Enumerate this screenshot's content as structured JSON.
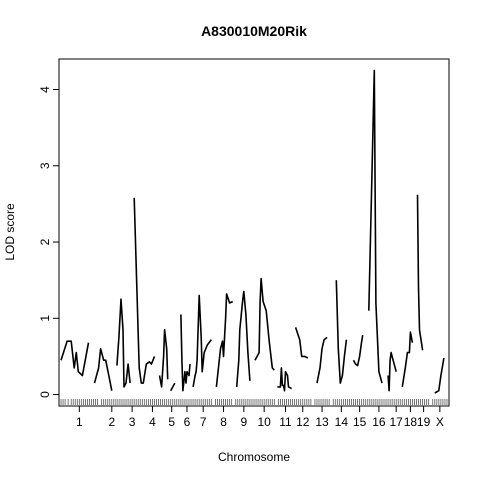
{
  "chart_data": {
    "type": "line",
    "title": "A830010M20Rik",
    "xlabel": "Chromosome",
    "ylabel": "LOD score",
    "ylim": [
      -0.15,
      4.4
    ],
    "yticks": [
      0,
      1,
      2,
      3,
      4
    ],
    "grid": false,
    "legend": "none",
    "line_color": "#000000",
    "chromosomes": [
      {
        "label": "1",
        "span": [
          0.1,
          1.9
        ],
        "segments": [
          [
            [
              0.1,
              0.45
            ],
            [
              0.4,
              0.7
            ],
            [
              0.6,
              0.7
            ],
            [
              0.75,
              0.35
            ],
            [
              0.85,
              0.55
            ],
            [
              0.95,
              0.3
            ],
            [
              1.15,
              0.25
            ],
            [
              1.45,
              0.68
            ]
          ]
        ]
      },
      {
        "label": "2",
        "span": [
          2.1,
          3.1
        ],
        "segments": [
          [
            [
              1.75,
              0.15
            ],
            [
              1.95,
              0.35
            ],
            [
              2.05,
              0.6
            ],
            [
              2.2,
              0.45
            ],
            [
              2.3,
              0.45
            ],
            [
              2.45,
              0.25
            ],
            [
              2.6,
              0.05
            ]
          ]
        ]
      },
      {
        "label": "3",
        "span": [
          3.2,
          4.0
        ],
        "segments": [
          [
            [
              2.85,
              0.38
            ],
            [
              2.95,
              0.75
            ],
            [
              3.05,
              1.25
            ],
            [
              3.15,
              0.85
            ],
            [
              3.2,
              0.1
            ],
            [
              3.3,
              0.15
            ],
            [
              3.4,
              0.4
            ],
            [
              3.5,
              0.15
            ]
          ]
        ]
      },
      {
        "label": "4",
        "span": [
          4.1,
          5.1
        ],
        "segments": [
          [
            [
              3.7,
              2.58
            ],
            [
              3.95,
              0.35
            ],
            [
              4.05,
              0.15
            ],
            [
              4.15,
              0.15
            ],
            [
              4.3,
              0.4
            ],
            [
              4.45,
              0.43
            ],
            [
              4.55,
              0.4
            ],
            [
              4.7,
              0.5
            ]
          ]
        ]
      },
      {
        "label": "5",
        "span": [
          5.2,
          5.9
        ],
        "segments": [
          [
            [
              4.95,
              0.25
            ],
            [
              5.05,
              0.1
            ],
            [
              5.15,
              0.5
            ],
            [
              5.2,
              0.85
            ],
            [
              5.3,
              0.6
            ],
            [
              5.35,
              0.2
            ]
          ],
          [
            [
              5.5,
              0.05
            ],
            [
              5.7,
              0.15
            ]
          ]
        ]
      },
      {
        "label": "6",
        "span": [
          6.0,
          6.6
        ],
        "segments": [
          [
            [
              6.0,
              1.05
            ],
            [
              6.05,
              0.45
            ],
            [
              6.1,
              0.05
            ],
            [
              6.2,
              0.3
            ],
            [
              6.25,
              0.15
            ],
            [
              6.3,
              0.3
            ],
            [
              6.4,
              0.25
            ],
            [
              6.45,
              0.4
            ]
          ]
        ]
      },
      {
        "label": "7",
        "span": [
          6.7,
          7.5
        ],
        "segments": [
          [
            [
              6.6,
              0.1
            ],
            [
              6.7,
              0.25
            ],
            [
              6.75,
              0.3
            ],
            [
              6.8,
              0.45
            ],
            [
              6.9,
              1.3
            ],
            [
              7.0,
              0.75
            ],
            [
              7.05,
              0.3
            ],
            [
              7.15,
              0.55
            ],
            [
              7.3,
              0.65
            ],
            [
              7.5,
              0.72
            ]
          ]
        ]
      },
      {
        "label": "8",
        "span": [
          7.7,
          8.5
        ],
        "segments": [
          [
            [
              7.75,
              0.1
            ],
            [
              7.95,
              0.6
            ],
            [
              8.05,
              0.7
            ],
            [
              8.1,
              0.5
            ],
            [
              8.2,
              1.0
            ],
            [
              8.25,
              1.32
            ],
            [
              8.4,
              1.2
            ],
            [
              8.55,
              1.22
            ]
          ]
        ]
      },
      {
        "label": "9",
        "span": [
          8.7,
          9.5
        ],
        "segments": [
          [
            [
              8.75,
              0.1
            ],
            [
              8.85,
              0.45
            ],
            [
              8.9,
              0.85
            ],
            [
              9.05,
              1.25
            ],
            [
              9.1,
              1.35
            ],
            [
              9.2,
              1.05
            ],
            [
              9.3,
              0.55
            ],
            [
              9.4,
              0.18
            ]
          ]
        ]
      },
      {
        "label": "10",
        "span": [
          9.6,
          10.6
        ],
        "segments": [
          [
            [
              9.65,
              0.45
            ],
            [
              9.85,
              0.55
            ],
            [
              9.9,
              1.22
            ],
            [
              9.95,
              1.52
            ],
            [
              10.05,
              1.22
            ],
            [
              10.2,
              1.1
            ],
            [
              10.35,
              0.7
            ],
            [
              10.5,
              0.35
            ],
            [
              10.6,
              0.32
            ]
          ]
        ]
      },
      {
        "label": "11",
        "span": [
          10.8,
          11.5
        ],
        "segments": [
          [
            [
              10.75,
              0.1
            ],
            [
              10.9,
              0.1
            ],
            [
              10.95,
              0.35
            ],
            [
              11.0,
              0.12
            ],
            [
              11.05,
              0.12
            ],
            [
              11.1,
              0.05
            ],
            [
              11.15,
              0.3
            ],
            [
              11.25,
              0.25
            ],
            [
              11.3,
              0.1
            ],
            [
              11.45,
              0.08
            ]
          ]
        ]
      },
      {
        "label": "12",
        "span": [
          11.6,
          12.4
        ],
        "segments": [
          [
            [
              11.65,
              0.88
            ],
            [
              11.85,
              0.72
            ],
            [
              11.95,
              0.5
            ],
            [
              12.1,
              0.5
            ],
            [
              12.25,
              0.48
            ]
          ]
        ]
      },
      {
        "label": "13",
        "span": [
          12.6,
          13.3
        ],
        "segments": [
          [
            [
              12.7,
              0.15
            ],
            [
              12.85,
              0.35
            ],
            [
              12.95,
              0.6
            ],
            [
              13.05,
              0.72
            ],
            [
              13.2,
              0.75
            ]
          ]
        ]
      },
      {
        "label": "14",
        "span": [
          13.5,
          14.3
        ],
        "segments": [
          [
            [
              13.65,
              1.5
            ],
            [
              13.75,
              0.6
            ],
            [
              13.85,
              0.15
            ],
            [
              13.95,
              0.25
            ],
            [
              14.05,
              0.5
            ],
            [
              14.15,
              0.72
            ]
          ]
        ]
      },
      {
        "label": "15",
        "span": [
          14.4,
          15.2
        ],
        "segments": [
          [
            [
              14.5,
              0.45
            ],
            [
              14.6,
              0.4
            ],
            [
              14.7,
              0.38
            ],
            [
              14.8,
              0.5
            ],
            [
              14.9,
              0.7
            ],
            [
              14.95,
              0.78
            ]
          ]
        ]
      },
      {
        "label": "16",
        "span": [
          15.3,
          16.2
        ],
        "segments": [
          [
            [
              15.25,
              1.1
            ],
            [
              15.4,
              2.8
            ],
            [
              15.52,
              4.25
            ],
            [
              15.6,
              1.2
            ],
            [
              15.75,
              0.3
            ],
            [
              15.9,
              0.15
            ]
          ]
        ]
      },
      {
        "label": "17",
        "span": [
          16.3,
          16.9
        ],
        "segments": [
          [
            [
              16.2,
              0.25
            ],
            [
              16.25,
              0.05
            ],
            [
              16.3,
              0.45
            ],
            [
              16.35,
              0.55
            ],
            [
              16.45,
              0.45
            ],
            [
              16.6,
              0.3
            ]
          ]
        ]
      },
      {
        "label": "18",
        "span": [
          17.0,
          17.6
        ],
        "segments": [
          [
            [
              16.9,
              0.1
            ],
            [
              17.05,
              0.35
            ],
            [
              17.15,
              0.55
            ],
            [
              17.25,
              0.55
            ],
            [
              17.3,
              0.82
            ],
            [
              17.4,
              0.68
            ]
          ]
        ]
      },
      {
        "label": "19",
        "span": [
          17.7,
          18.2
        ],
        "segments": [
          [
            [
              17.65,
              2.62
            ],
            [
              17.7,
              1.4
            ],
            [
              17.75,
              0.85
            ],
            [
              17.9,
              0.58
            ]
          ]
        ]
      },
      {
        "label": "X",
        "span": [
          18.4,
          19.1
        ],
        "segments": [
          [
            [
              18.5,
              0.02
            ],
            [
              18.7,
              0.05
            ],
            [
              18.8,
              0.25
            ],
            [
              18.95,
              0.48
            ]
          ]
        ]
      }
    ],
    "markers": [
      0.1,
      0.2,
      0.3,
      0.45,
      0.6,
      0.7,
      0.8,
      0.9,
      1.0,
      1.1,
      1.2,
      1.3,
      1.4,
      1.5,
      1.6,
      1.7,
      1.8,
      1.9,
      2.1,
      2.2,
      2.3,
      2.4,
      2.5,
      2.6,
      2.7,
      2.8,
      2.9,
      3.0,
      3.1,
      3.2,
      3.3,
      3.4,
      3.5,
      3.6,
      3.7,
      3.8,
      3.9,
      4.0,
      4.1,
      4.2,
      4.3,
      4.4,
      4.5,
      4.6,
      4.7,
      4.8,
      4.9,
      5.0,
      5.1,
      5.2,
      5.3,
      5.4,
      5.5,
      5.6,
      5.7,
      5.8,
      5.9,
      6.0,
      6.1,
      6.2,
      6.3,
      6.4,
      6.5,
      6.6,
      6.7,
      6.8,
      6.9,
      7.0,
      7.1,
      7.2,
      7.3,
      7.4,
      7.5,
      7.7,
      7.8,
      7.9,
      8.0,
      8.1,
      8.2,
      8.3,
      8.4,
      8.5,
      8.7,
      8.8,
      8.9,
      9.0,
      9.1,
      9.2,
      9.3,
      9.4,
      9.5,
      9.6,
      9.7,
      9.8,
      9.9,
      10.0,
      10.1,
      10.2,
      10.3,
      10.4,
      10.5,
      10.6,
      10.8,
      10.9,
      11.0,
      11.1,
      11.2,
      11.3,
      11.4,
      11.5,
      11.6,
      11.7,
      11.8,
      11.9,
      12.0,
      12.1,
      12.2,
      12.3,
      12.4,
      12.6,
      12.7,
      12.8,
      12.9,
      13.0,
      13.1,
      13.2,
      13.3,
      13.5,
      13.6,
      13.7,
      13.8,
      13.9,
      14.0,
      14.1,
      14.2,
      14.3,
      14.4,
      14.5,
      14.6,
      14.7,
      14.8,
      14.9,
      15.0,
      15.1,
      15.2,
      15.3,
      15.4,
      15.5,
      15.6,
      15.7,
      15.8,
      15.9,
      16.0,
      16.1,
      16.2,
      16.3,
      16.4,
      16.5,
      16.6,
      16.7,
      16.8,
      16.9,
      17.0,
      17.1,
      17.2,
      17.3,
      17.4,
      17.5,
      17.6,
      17.7,
      17.8,
      17.9,
      18.0,
      18.1,
      18.2,
      18.4,
      18.5,
      18.6,
      18.7,
      18.8,
      18.9,
      19.0,
      19.1
    ],
    "xlim": [
      0,
      19.2
    ]
  }
}
